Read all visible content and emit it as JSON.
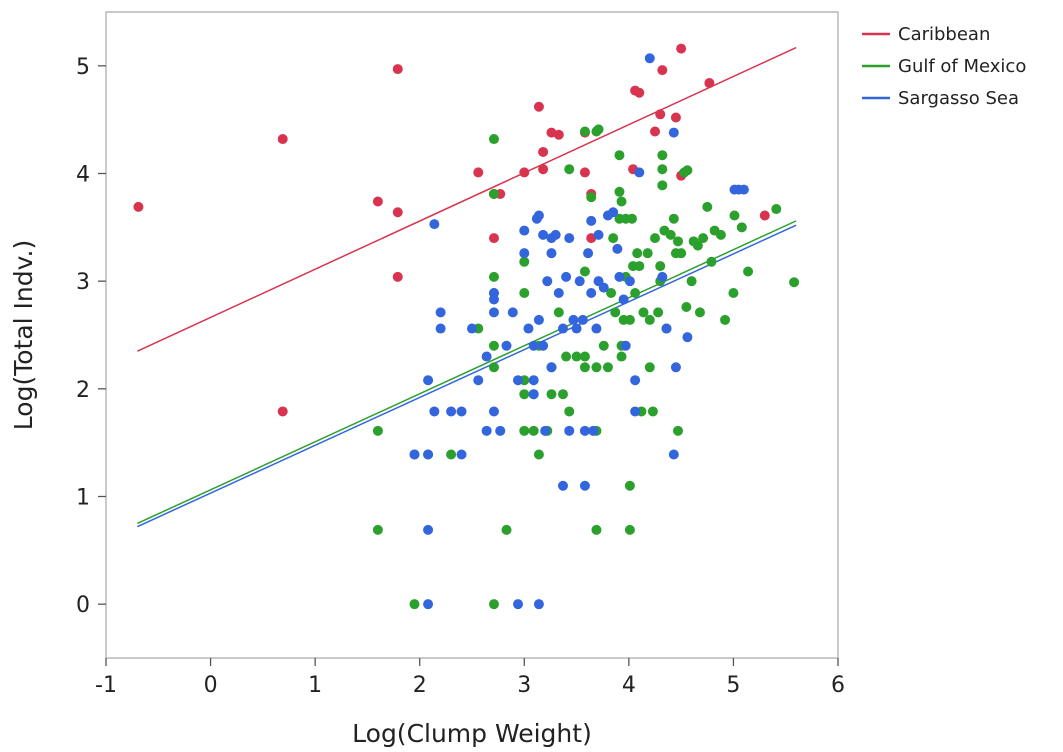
{
  "chart_data": {
    "type": "scatter",
    "xlabel": "Log(Clump Weight)",
    "ylabel": "Log(Total Indv.)",
    "xlim": [
      -1,
      6
    ],
    "ylim": [
      -0.5,
      5.5
    ],
    "x_ticks": [
      -1,
      0,
      1,
      2,
      3,
      4,
      5,
      6
    ],
    "y_ticks": [
      0,
      1,
      2,
      3,
      4,
      5
    ],
    "grid": false,
    "legend_position": "top-right outside plot",
    "series": [
      {
        "name": "Caribbean",
        "color": "#d9344f",
        "points": [
          [
            -0.69,
            3.69
          ],
          [
            0.69,
            4.32
          ],
          [
            0.69,
            1.79
          ],
          [
            1.6,
            3.74
          ],
          [
            1.79,
            3.64
          ],
          [
            1.79,
            3.04
          ],
          [
            1.79,
            4.97
          ],
          [
            2.56,
            4.01
          ],
          [
            2.71,
            3.81
          ],
          [
            2.71,
            3.4
          ],
          [
            2.77,
            3.81
          ],
          [
            3.0,
            4.01
          ],
          [
            3.14,
            4.62
          ],
          [
            3.18,
            4.2
          ],
          [
            3.18,
            4.04
          ],
          [
            3.26,
            4.38
          ],
          [
            3.33,
            4.36
          ],
          [
            3.58,
            4.01
          ],
          [
            3.58,
            4.38
          ],
          [
            3.64,
            3.81
          ],
          [
            3.64,
            3.4
          ],
          [
            4.04,
            4.04
          ],
          [
            4.06,
            4.77
          ],
          [
            4.1,
            4.75
          ],
          [
            4.25,
            4.39
          ],
          [
            4.3,
            4.55
          ],
          [
            4.32,
            4.96
          ],
          [
            4.45,
            4.52
          ],
          [
            4.5,
            3.98
          ],
          [
            4.5,
            5.16
          ],
          [
            4.77,
            4.84
          ],
          [
            5.3,
            3.61
          ]
        ],
        "fit": [
          [
            -0.7,
            2.35
          ],
          [
            5.6,
            5.17
          ]
        ]
      },
      {
        "name": "Gulf of Mexico",
        "color": "#2ca02c",
        "points": [
          [
            1.6,
            1.61
          ],
          [
            1.6,
            0.69
          ],
          [
            1.95,
            0.0
          ],
          [
            1.95,
            1.39
          ],
          [
            2.08,
            1.39
          ],
          [
            2.3,
            1.39
          ],
          [
            2.56,
            2.56
          ],
          [
            2.71,
            4.32
          ],
          [
            2.71,
            3.81
          ],
          [
            2.71,
            3.04
          ],
          [
            2.71,
            2.89
          ],
          [
            2.71,
            2.4
          ],
          [
            2.71,
            2.2
          ],
          [
            2.71,
            0.0
          ],
          [
            2.83,
            0.69
          ],
          [
            3.0,
            3.18
          ],
          [
            3.0,
            2.89
          ],
          [
            3.0,
            2.08
          ],
          [
            3.0,
            1.95
          ],
          [
            3.0,
            1.61
          ],
          [
            3.09,
            1.95
          ],
          [
            3.09,
            1.61
          ],
          [
            3.14,
            2.4
          ],
          [
            3.14,
            1.39
          ],
          [
            3.22,
            1.61
          ],
          [
            3.26,
            2.2
          ],
          [
            3.26,
            1.95
          ],
          [
            3.33,
            2.71
          ],
          [
            3.37,
            1.95
          ],
          [
            3.4,
            2.3
          ],
          [
            3.43,
            4.04
          ],
          [
            3.43,
            1.79
          ],
          [
            3.5,
            2.3
          ],
          [
            3.58,
            4.39
          ],
          [
            3.58,
            3.09
          ],
          [
            3.58,
            2.3
          ],
          [
            3.58,
            2.2
          ],
          [
            3.64,
            3.78
          ],
          [
            3.69,
            4.39
          ],
          [
            3.69,
            2.2
          ],
          [
            3.69,
            1.61
          ],
          [
            3.69,
            0.69
          ],
          [
            3.71,
            4.41
          ],
          [
            3.76,
            2.4
          ],
          [
            3.8,
            2.2
          ],
          [
            3.83,
            2.89
          ],
          [
            3.85,
            3.4
          ],
          [
            3.87,
            2.71
          ],
          [
            3.91,
            4.17
          ],
          [
            3.91,
            3.83
          ],
          [
            3.91,
            3.58
          ],
          [
            3.93,
            3.74
          ],
          [
            3.93,
            2.4
          ],
          [
            3.93,
            2.3
          ],
          [
            3.95,
            2.64
          ],
          [
            3.97,
            3.58
          ],
          [
            3.97,
            3.04
          ],
          [
            4.01,
            2.64
          ],
          [
            4.01,
            1.1
          ],
          [
            4.01,
            0.69
          ],
          [
            4.03,
            3.58
          ],
          [
            4.04,
            3.14
          ],
          [
            4.06,
            2.89
          ],
          [
            4.08,
            3.26
          ],
          [
            4.1,
            3.14
          ],
          [
            4.12,
            1.79
          ],
          [
            4.14,
            2.71
          ],
          [
            4.18,
            3.26
          ],
          [
            4.2,
            2.64
          ],
          [
            4.2,
            2.2
          ],
          [
            4.23,
            1.79
          ],
          [
            4.25,
            3.4
          ],
          [
            4.28,
            2.71
          ],
          [
            4.3,
            3.14
          ],
          [
            4.3,
            3.0
          ],
          [
            4.32,
            4.17
          ],
          [
            4.32,
            4.04
          ],
          [
            4.32,
            3.89
          ],
          [
            4.34,
            3.47
          ],
          [
            4.36,
            2.56
          ],
          [
            4.4,
            3.43
          ],
          [
            4.43,
            3.58
          ],
          [
            4.45,
            3.26
          ],
          [
            4.47,
            3.37
          ],
          [
            4.47,
            1.61
          ],
          [
            4.5,
            3.26
          ],
          [
            4.53,
            4.01
          ],
          [
            4.55,
            2.76
          ],
          [
            4.56,
            4.03
          ],
          [
            4.6,
            3.0
          ],
          [
            4.62,
            3.37
          ],
          [
            4.66,
            3.33
          ],
          [
            4.68,
            2.71
          ],
          [
            4.71,
            3.4
          ],
          [
            4.75,
            3.69
          ],
          [
            4.79,
            3.18
          ],
          [
            4.82,
            3.47
          ],
          [
            4.88,
            3.43
          ],
          [
            4.92,
            2.64
          ],
          [
            5.0,
            2.89
          ],
          [
            5.01,
            3.61
          ],
          [
            5.08,
            3.5
          ],
          [
            5.14,
            3.09
          ],
          [
            5.41,
            3.67
          ],
          [
            5.58,
            2.99
          ]
        ],
        "fit": [
          [
            -0.7,
            0.75
          ],
          [
            5.6,
            3.56
          ]
        ]
      },
      {
        "name": "Sargasso Sea",
        "color": "#3366dd",
        "points": [
          [
            1.95,
            1.39
          ],
          [
            2.08,
            2.08
          ],
          [
            2.08,
            1.39
          ],
          [
            2.08,
            0.69
          ],
          [
            2.08,
            0.0
          ],
          [
            2.14,
            1.79
          ],
          [
            2.14,
            3.53
          ],
          [
            2.2,
            2.71
          ],
          [
            2.2,
            2.56
          ],
          [
            2.3,
            1.79
          ],
          [
            2.4,
            1.79
          ],
          [
            2.4,
            1.39
          ],
          [
            2.5,
            2.56
          ],
          [
            2.56,
            2.08
          ],
          [
            2.64,
            1.61
          ],
          [
            2.64,
            2.3
          ],
          [
            2.71,
            2.89
          ],
          [
            2.71,
            2.83
          ],
          [
            2.71,
            2.71
          ],
          [
            2.71,
            1.79
          ],
          [
            2.77,
            1.61
          ],
          [
            2.83,
            2.4
          ],
          [
            2.89,
            2.71
          ],
          [
            2.94,
            2.08
          ],
          [
            2.94,
            0.0
          ],
          [
            3.0,
            3.47
          ],
          [
            3.0,
            3.26
          ],
          [
            3.04,
            2.56
          ],
          [
            3.09,
            2.4
          ],
          [
            3.09,
            2.08
          ],
          [
            3.09,
            1.95
          ],
          [
            3.12,
            3.58
          ],
          [
            3.14,
            3.61
          ],
          [
            3.14,
            2.64
          ],
          [
            3.14,
            0.0
          ],
          [
            3.18,
            3.43
          ],
          [
            3.18,
            2.4
          ],
          [
            3.2,
            1.61
          ],
          [
            3.22,
            3.0
          ],
          [
            3.26,
            3.4
          ],
          [
            3.26,
            3.26
          ],
          [
            3.26,
            2.2
          ],
          [
            3.3,
            3.43
          ],
          [
            3.33,
            2.89
          ],
          [
            3.37,
            1.1
          ],
          [
            3.37,
            2.56
          ],
          [
            3.4,
            3.04
          ],
          [
            3.43,
            3.4
          ],
          [
            3.43,
            1.61
          ],
          [
            3.47,
            2.64
          ],
          [
            3.5,
            2.56
          ],
          [
            3.53,
            3.0
          ],
          [
            3.56,
            2.64
          ],
          [
            3.58,
            1.61
          ],
          [
            3.58,
            1.1
          ],
          [
            3.61,
            3.26
          ],
          [
            3.64,
            3.56
          ],
          [
            3.64,
            2.89
          ],
          [
            3.66,
            1.61
          ],
          [
            3.69,
            2.56
          ],
          [
            3.71,
            3.43
          ],
          [
            3.71,
            3.0
          ],
          [
            3.76,
            2.94
          ],
          [
            3.8,
            3.61
          ],
          [
            3.85,
            3.64
          ],
          [
            3.89,
            3.3
          ],
          [
            3.91,
            3.04
          ],
          [
            3.95,
            2.83
          ],
          [
            3.97,
            2.4
          ],
          [
            4.01,
            3.0
          ],
          [
            4.06,
            1.79
          ],
          [
            4.06,
            2.08
          ],
          [
            4.1,
            4.01
          ],
          [
            4.2,
            5.07
          ],
          [
            4.32,
            3.04
          ],
          [
            4.36,
            2.56
          ],
          [
            4.43,
            4.38
          ],
          [
            4.43,
            1.39
          ],
          [
            4.45,
            2.2
          ],
          [
            4.56,
            2.48
          ],
          [
            5.01,
            3.85
          ],
          [
            5.05,
            3.85
          ],
          [
            5.1,
            3.85
          ]
        ],
        "fit": [
          [
            -0.7,
            0.72
          ],
          [
            5.6,
            3.52
          ]
        ]
      }
    ]
  }
}
